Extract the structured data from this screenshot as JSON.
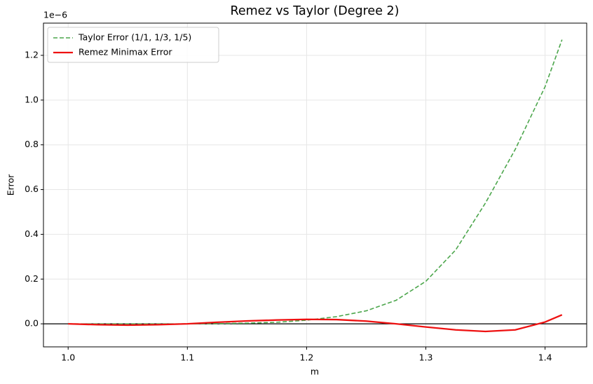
{
  "chart_data": {
    "type": "line",
    "title": "Remez vs Taylor (Degree 2)",
    "x_label": "m",
    "y_label": "Error",
    "y_offset_label": "1e−6",
    "x": [
      1.0,
      1.025,
      1.05,
      1.075,
      1.1,
      1.125,
      1.15,
      1.175,
      1.2,
      1.225,
      1.25,
      1.275,
      1.3,
      1.325,
      1.35,
      1.375,
      1.4,
      1.4142
    ],
    "series": [
      {
        "name": "Taylor Error (1/1, 1/3, 1/5)",
        "color": "#4ca64c",
        "dashed": true,
        "values": [
          0,
          0,
          0,
          0,
          0,
          0.001,
          0.003,
          0.007,
          0.016,
          0.032,
          0.058,
          0.105,
          0.19,
          0.33,
          0.54,
          0.78,
          1.06,
          1.27
        ]
      },
      {
        "name": "Remez Minimax Error",
        "color": "#ee1111",
        "dashed": false,
        "values": [
          0,
          -0.004,
          -0.006,
          -0.004,
          0,
          0.007,
          0.013,
          0.017,
          0.02,
          0.019,
          0.012,
          0,
          -0.014,
          -0.027,
          -0.034,
          -0.027,
          0.008,
          0.04
        ]
      }
    ],
    "xlim": [
      0.9793,
      1.4349
    ],
    "ylim": [
      -0.103,
      1.344
    ],
    "xticks": [
      {
        "value": 1.0,
        "label": "1.0"
      },
      1.1,
      1.2,
      1.3,
      1.4
    ],
    "yticks": [
      {
        "value": 0,
        "label": "0.0"
      },
      0.2,
      0.4,
      0.6,
      0.8,
      {
        "value": 1.0,
        "label": "1.0"
      },
      1.2
    ],
    "grid": true,
    "legend": "upper-left"
  }
}
